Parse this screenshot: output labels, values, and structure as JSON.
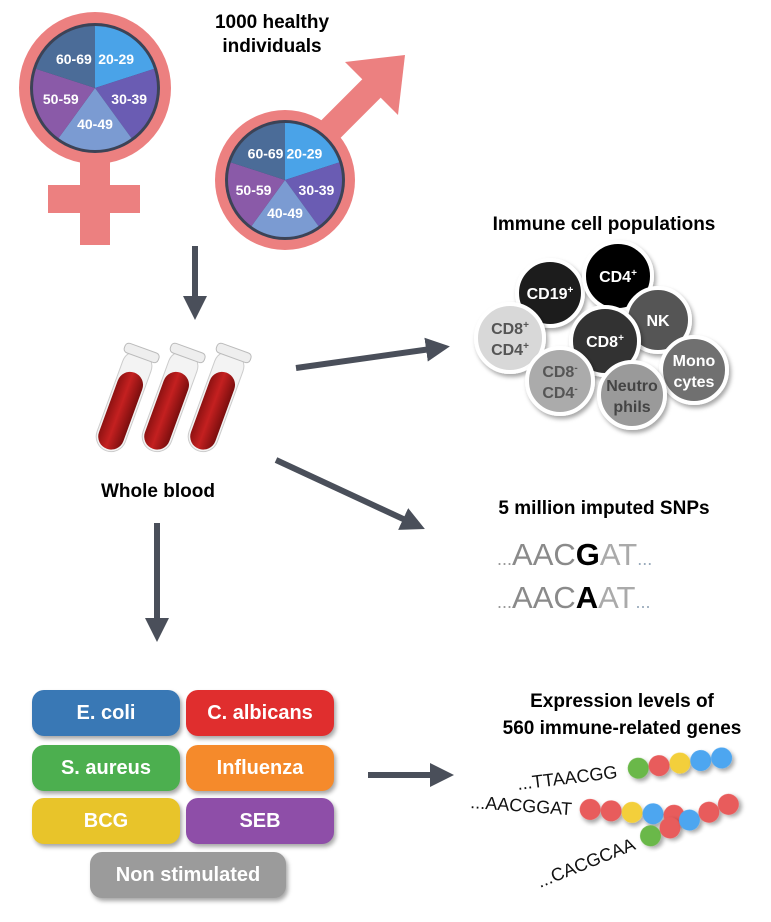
{
  "cohort": {
    "title_line1": "1000 healthy",
    "title_line2": "individuals",
    "age_groups": [
      "20-29",
      "30-39",
      "40-49",
      "50-59",
      "60-69"
    ],
    "age_colors": [
      "#4aa3e8",
      "#6a5cb3",
      "#7b9bd2",
      "#8a5aa8",
      "#4b6c98"
    ],
    "symbol_color": "#ec8080"
  },
  "sample": {
    "label": "Whole blood"
  },
  "immune": {
    "title": "Immune cell populations",
    "cells": [
      {
        "l1": "CD19",
        "sup1": "+",
        "l2": "",
        "sup2": "",
        "fill": "#1f1f1f",
        "text": "#ffffff"
      },
      {
        "l1": "CD4",
        "sup1": "+",
        "l2": "",
        "sup2": "",
        "fill": "#000000",
        "text": "#ffffff"
      },
      {
        "l1": "NK",
        "sup1": "",
        "l2": "",
        "sup2": "",
        "fill": "#555555",
        "text": "#ffffff"
      },
      {
        "l1": "CD8",
        "sup1": "+",
        "l2": "CD4",
        "sup2": "+",
        "fill": "#d8d8d8",
        "text": "#555555"
      },
      {
        "l1": "CD8",
        "sup1": "+",
        "l2": "",
        "sup2": "",
        "fill": "#333333",
        "text": "#ffffff"
      },
      {
        "l1": "Mono",
        "sup1": "",
        "l2": "cytes",
        "sup2": "",
        "fill": "#707070",
        "text": "#ffffff"
      },
      {
        "l1": "CD8",
        "sup1": "-",
        "l2": "CD4",
        "sup2": "-",
        "fill": "#ababab",
        "text": "#555555"
      },
      {
        "l1": "Neutro",
        "sup1": "",
        "l2": "phils",
        "sup2": "",
        "fill": "#9a9a9a",
        "text": "#444444"
      }
    ]
  },
  "snps": {
    "title": "5 million imputed SNPs",
    "seq1": {
      "pre": "AAC",
      "snp": "G",
      "post": "AT"
    },
    "seq2": {
      "pre": "AAC",
      "snp": "A",
      "post": "AT"
    },
    "ellipsis": "..."
  },
  "stimuli": [
    {
      "label": "E. coli",
      "color": "#3978b5"
    },
    {
      "label": "C. albicans",
      "color": "#e02e2e"
    },
    {
      "label": "S. aureus",
      "color": "#4caf4f"
    },
    {
      "label": "Influenza",
      "color": "#f58a2b"
    },
    {
      "label": "BCG",
      "color": "#e8c42a"
    },
    {
      "label": "SEB",
      "color": "#8e4ea8"
    },
    {
      "label": "Non stimulated",
      "color": "#9b9b9b"
    }
  ],
  "expression": {
    "title_line1": "Expression levels of",
    "title_line2": "560 immune-related genes",
    "reads": [
      {
        "seq": "...TTAACGG",
        "beads": [
          "#6ab84a",
          "#e85c5c",
          "#f3cf3a",
          "#4da6f0",
          "#4da6f0"
        ]
      },
      {
        "seq": "...AACGGAT",
        "beads": [
          "#e85c5c",
          "#e85c5c",
          "#f3cf3a",
          "#4da6f0",
          "#e85c5c"
        ]
      },
      {
        "seq": "...CACGCAA",
        "beads": [
          "#6ab84a",
          "#e85c5c",
          "#4da6f0",
          "#e85c5c",
          "#e85c5c"
        ]
      }
    ]
  }
}
